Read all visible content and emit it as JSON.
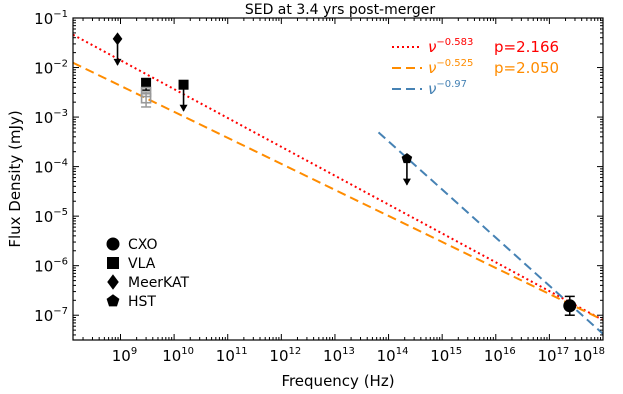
{
  "chart_data": {
    "type": "scatter",
    "title": "SED at 3.4 yrs post-merger",
    "xlabel": "Frequency (Hz)",
    "ylabel": "Flux Density (mJy)",
    "xscale": "log",
    "yscale": "log",
    "xlim": [
      130000000.0,
      1e+18
    ],
    "ylim": [
      3.16e-08,
      0.1
    ],
    "x_ticks": [
      {
        "value": 1000000000.0,
        "base": "10",
        "exp": "9"
      },
      {
        "value": 10000000000.0,
        "base": "10",
        "exp": "10"
      },
      {
        "value": 100000000000.0,
        "base": "10",
        "exp": "11"
      },
      {
        "value": 1000000000000.0,
        "base": "10",
        "exp": "12"
      },
      {
        "value": 10000000000000.0,
        "base": "10",
        "exp": "13"
      },
      {
        "value": 100000000000000.0,
        "base": "10",
        "exp": "14"
      },
      {
        "value": 1000000000000000.0,
        "base": "10",
        "exp": "15"
      },
      {
        "value": 1e+16,
        "base": "10",
        "exp": "16"
      },
      {
        "value": 1e+17,
        "base": "10",
        "exp": "17"
      },
      {
        "value": 1e+18,
        "base": "10",
        "exp": "18"
      }
    ],
    "y_ticks": [
      {
        "value": 0.1,
        "base": "10",
        "exp": "−1"
      },
      {
        "value": 0.01,
        "base": "10",
        "exp": "−2"
      },
      {
        "value": 0.001,
        "base": "10",
        "exp": "−3"
      },
      {
        "value": 0.0001,
        "base": "10",
        "exp": "−4"
      },
      {
        "value": 1e-05,
        "base": "10",
        "exp": "−5"
      },
      {
        "value": 1e-06,
        "base": "10",
        "exp": "−6"
      },
      {
        "value": 1e-07,
        "base": "10",
        "exp": "−7"
      }
    ],
    "legend_position": "lower-left",
    "legend": [
      {
        "name": "CXO",
        "marker": "circle"
      },
      {
        "name": "VLA",
        "marker": "square"
      },
      {
        "name": "MeerKAT",
        "marker": "diamond"
      },
      {
        "name": "HST",
        "marker": "pentagon"
      }
    ],
    "points": [
      {
        "instrument": "MeerKAT",
        "marker": "diamond",
        "x": 880000000.0,
        "y": 0.038,
        "upper_limit": true,
        "filled": true
      },
      {
        "instrument": "VLA",
        "marker": "square",
        "x": 3000000000.0,
        "y": 0.0048,
        "upper_limit": false,
        "filled": true,
        "err_low": 0.0035,
        "err_high": 0.006
      },
      {
        "instrument": "VLA",
        "marker": "square",
        "x": 3000000000.0,
        "y": 0.0032,
        "upper_limit": false,
        "filled": false,
        "color": "#999999"
      },
      {
        "instrument": "VLA",
        "marker": "square",
        "x": 3000000000.0,
        "y": 0.0024,
        "upper_limit": false,
        "filled": false,
        "color": "#999999",
        "err_low": 0.0016,
        "err_high": 0.0032
      },
      {
        "instrument": "VLA",
        "marker": "square",
        "x": 15000000000.0,
        "y": 0.0045,
        "upper_limit": true,
        "filled": true
      },
      {
        "instrument": "HST",
        "marker": "pentagon",
        "x": 220000000000000.0,
        "y": 0.000145,
        "upper_limit": true,
        "filled": true
      },
      {
        "instrument": "CXO",
        "marker": "circle",
        "x": 2.4e+17,
        "y": 1.55e-07,
        "upper_limit": false,
        "filled": true,
        "err_low": 1e-07,
        "err_high": 2.4e-07
      }
    ],
    "fits": [
      {
        "label_base": "ν",
        "label_exp": "−0.583",
        "label_p": "p=2.166",
        "color": "#ff0000",
        "dash": "2,3",
        "x_range": [
          130000000.0,
          1e+18
        ],
        "y_start": 0.046,
        "y_end": 8e-08
      },
      {
        "label_base": "ν",
        "label_exp": "−0.525",
        "label_p": "p=2.050",
        "color": "#ff8c00",
        "dash": "9,5",
        "x_range": [
          130000000.0,
          1e+18
        ],
        "y_start": 0.0125,
        "y_end": 8e-08
      },
      {
        "label_base": "ν",
        "label_exp": "−0.97",
        "label_p": "",
        "color": "#4682b4",
        "dash": "9,5",
        "x_range": [
          65000000000000.0,
          1e+18
        ],
        "y_start": 0.00049,
        "y_end": 4.2e-08
      }
    ]
  }
}
